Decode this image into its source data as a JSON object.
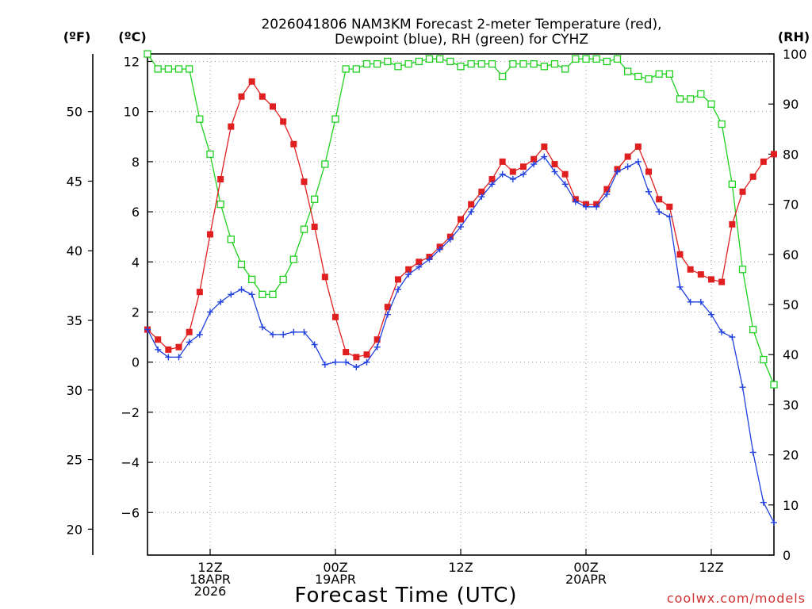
{
  "chart_data": {
    "type": "line",
    "title_line1": "2026041806 NAM3KM Forecast 2-meter Temperature (red),",
    "title_line2": "Dewpoint (blue), RH (green) for CYHZ",
    "xlabel": "Forecast Time (UTC)",
    "credit": "coolwx.com/models",
    "unit_f": "(ºF)",
    "unit_c": "(ºC)",
    "unit_rh": "(RH)",
    "x_range_hours": [
      0,
      60
    ],
    "celsius_range": [
      -7.7,
      12.3
    ],
    "rh_range": [
      0,
      100
    ],
    "x_ticks": [
      {
        "hour": 6,
        "lines": [
          "12Z",
          "18APR",
          "2026"
        ]
      },
      {
        "hour": 18,
        "lines": [
          "00Z",
          "19APR"
        ]
      },
      {
        "hour": 30,
        "lines": [
          "12Z"
        ]
      },
      {
        "hour": 42,
        "lines": [
          "00Z",
          "20APR"
        ]
      },
      {
        "hour": 54,
        "lines": [
          "12Z"
        ]
      }
    ],
    "celsius_ticks": [
      -6,
      -4,
      -2,
      0,
      2,
      4,
      6,
      8,
      10,
      12
    ],
    "celsius_tick_labels": [
      "−6",
      "−4",
      "−2",
      "0",
      "2",
      "4",
      "6",
      "8",
      "10",
      "12"
    ],
    "fahrenheit_ticks": [
      20,
      25,
      30,
      35,
      40,
      45,
      50
    ],
    "rh_ticks": [
      0,
      10,
      20,
      30,
      40,
      50,
      60,
      70,
      80,
      90,
      100
    ],
    "series": [
      {
        "name": "Temperature",
        "color": "#e02020",
        "marker": "filled-square",
        "values": [
          1.3,
          0.9,
          0.5,
          0.6,
          1.2,
          2.8,
          5.1,
          7.3,
          9.4,
          10.6,
          11.2,
          10.6,
          10.2,
          9.6,
          8.7,
          7.2,
          5.4,
          3.4,
          1.8,
          0.4,
          0.2,
          0.3,
          0.9,
          2.2,
          3.3,
          3.7,
          4.0,
          4.2,
          4.6,
          5.0,
          5.7,
          6.3,
          6.8,
          7.3,
          8.0,
          7.6,
          7.8,
          8.1,
          8.6,
          7.9,
          7.5,
          6.5,
          6.3,
          6.3,
          6.9,
          7.7,
          8.2,
          8.6,
          7.6,
          6.5,
          6.2,
          4.3,
          3.7,
          3.5,
          3.3,
          3.2,
          5.5,
          6.8,
          7.4,
          8.0,
          8.3
        ]
      },
      {
        "name": "Dewpoint",
        "color": "#2040e0",
        "marker": "plus",
        "values": [
          1.3,
          0.5,
          0.2,
          0.2,
          0.8,
          1.1,
          2.0,
          2.4,
          2.7,
          2.9,
          2.7,
          1.4,
          1.1,
          1.1,
          1.2,
          1.2,
          0.7,
          -0.1,
          0.0,
          0.0,
          -0.2,
          0.0,
          0.6,
          1.9,
          2.9,
          3.5,
          3.8,
          4.1,
          4.5,
          4.9,
          5.4,
          6.0,
          6.6,
          7.1,
          7.5,
          7.3,
          7.5,
          7.9,
          8.2,
          7.6,
          7.1,
          6.4,
          6.2,
          6.2,
          6.7,
          7.6,
          7.8,
          8.0,
          6.8,
          6.0,
          5.8,
          3.0,
          2.4,
          2.4,
          1.9,
          1.2,
          1.0,
          -1.0,
          -3.6,
          -5.6,
          -6.4
        ]
      },
      {
        "name": "RH",
        "color": "#20d020",
        "marker": "open-square",
        "values": [
          100,
          97,
          97,
          97,
          97,
          87,
          80,
          70,
          63,
          58,
          55,
          52,
          52,
          55,
          59,
          65,
          71,
          78,
          87,
          97,
          97,
          98,
          98,
          98.5,
          97.5,
          98,
          98.5,
          99,
          99,
          98.5,
          97.5,
          98,
          98,
          98,
          95.5,
          98,
          98,
          98,
          97.5,
          98,
          97,
          99,
          99,
          99,
          98.5,
          99,
          96.5,
          95.5,
          95,
          96,
          96,
          91,
          91,
          92,
          90,
          86,
          74,
          57,
          45,
          39,
          34
        ]
      }
    ]
  }
}
